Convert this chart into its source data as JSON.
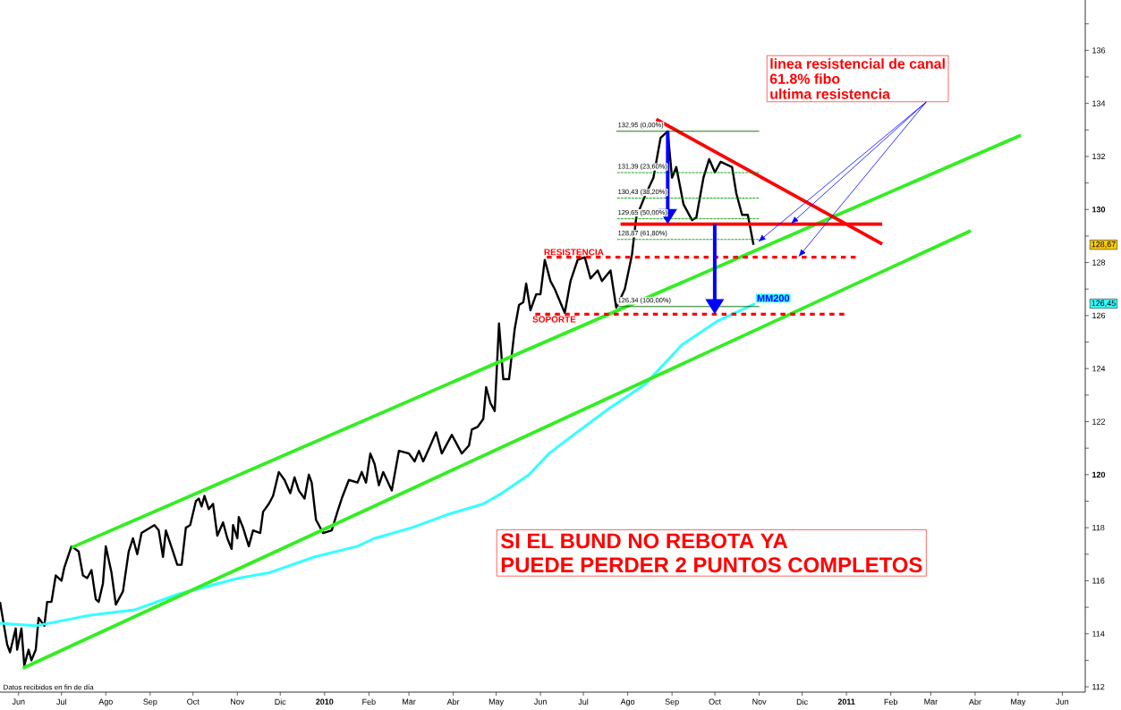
{
  "chart_data": {
    "type": "line",
    "xlim": [
      "2009-05-19",
      "2011-06-17"
    ],
    "ylim": [
      111.8,
      137.9
    ],
    "xticks": [
      {
        "value": "2009-06-01",
        "label": "Jun"
      },
      {
        "value": "2009-07-01",
        "label": "Jul"
      },
      {
        "value": "2009-08-01",
        "label": "Ago"
      },
      {
        "value": "2009-09-01",
        "label": "Sep"
      },
      {
        "value": "2009-10-01",
        "label": "Oct"
      },
      {
        "value": "2009-11-01",
        "label": "Nov"
      },
      {
        "value": "2009-12-01",
        "label": "Dic"
      },
      {
        "value": "2010-01-01",
        "label": "**2010**"
      },
      {
        "value": "2010-02-01",
        "label": "Feb"
      },
      {
        "value": "2010-03-01",
        "label": "Mar"
      },
      {
        "value": "2010-04-01",
        "label": "Abr"
      },
      {
        "value": "2010-05-01",
        "label": "May"
      },
      {
        "value": "2010-06-01",
        "label": "Jun"
      },
      {
        "value": "2010-07-01",
        "label": "Jul"
      },
      {
        "value": "2010-08-01",
        "label": "Ago"
      },
      {
        "value": "2010-09-01",
        "label": "Sep"
      },
      {
        "value": "2010-10-01",
        "label": "Oct"
      },
      {
        "value": "2010-11-01",
        "label": "Nov"
      },
      {
        "value": "2010-12-01",
        "label": "Dic"
      },
      {
        "value": "2011-01-01",
        "label": "**2011**"
      },
      {
        "value": "2011-02-01",
        "label": "Feb"
      },
      {
        "value": "2011-03-01",
        "label": "Mar"
      },
      {
        "value": "2011-04-01",
        "label": "Abr"
      },
      {
        "value": "2011-05-01",
        "label": "May"
      },
      {
        "value": "2011-06-01",
        "label": "Jun"
      }
    ],
    "yticks": [
      112,
      {
        "value": 113,
        "label": null
      },
      114,
      {
        "value": 115,
        "label": null
      },
      116,
      {
        "value": 117,
        "label": null
      },
      118,
      {
        "value": 119,
        "label": null
      },
      {
        "value": 120,
        "label": "**120**"
      },
      {
        "value": 121,
        "label": null
      },
      122,
      {
        "value": 123,
        "label": null
      },
      124,
      {
        "value": 125,
        "label": null
      },
      126,
      {
        "value": 127,
        "label": null
      },
      128,
      {
        "value": 129,
        "label": null
      },
      {
        "value": 130,
        "label": "**130**"
      },
      {
        "value": 131,
        "label": null
      },
      132,
      {
        "value": 133,
        "label": null
      },
      134,
      {
        "value": 135,
        "label": null
      },
      136,
      {
        "value": 137,
        "label": null
      }
    ],
    "marker": "none",
    "series": [
      {
        "color": "#000000",
        "x": [
          "2009-05-19",
          "2009-05-24",
          "2009-05-26",
          "2009-05-30",
          "2009-05-31",
          "2009-06-03",
          "2009-06-05",
          "2009-06-08",
          "2009-06-10",
          "2009-06-13",
          "2009-06-15",
          "2009-06-19",
          "2009-06-21",
          "2009-06-24",
          "2009-06-27",
          "2009-07-01",
          "2009-07-03",
          "2009-07-08",
          "2009-07-13",
          "2009-07-16",
          "2009-07-19",
          "2009-07-22",
          "2009-07-25",
          "2009-07-27",
          "2009-07-30",
          "2009-08-01",
          "2009-08-05",
          "2009-08-08",
          "2009-08-13",
          "2009-08-17",
          "2009-08-20",
          "2009-08-23",
          "2009-08-26",
          "2009-09-04",
          "2009-09-07",
          "2009-09-10",
          "2009-09-12",
          "2009-09-17",
          "2009-09-20",
          "2009-09-23",
          "2009-09-26",
          "2009-09-29",
          "2009-10-03",
          "2009-10-05",
          "2009-10-07",
          "2009-10-09",
          "2009-10-12",
          "2009-10-15",
          "2009-10-18",
          "2009-10-22",
          "2009-10-25",
          "2009-10-28",
          "2009-10-29",
          "2009-11-01",
          "2009-11-02",
          "2009-11-05",
          "2009-11-09",
          "2009-11-12",
          "2009-11-17",
          "2009-11-19",
          "2009-11-23",
          "2009-11-26",
          "2009-11-30",
          "2009-12-04",
          "2009-12-08",
          "2009-12-11",
          "2009-12-14",
          "2009-12-18",
          "2009-12-21",
          "2009-12-23",
          "2009-12-26",
          "2009-12-31",
          "2010-01-06",
          "2010-01-10",
          "2010-01-13",
          "2010-01-18",
          "2010-01-24",
          "2010-01-27",
          "2010-01-30",
          "2010-02-02",
          "2010-02-05",
          "2010-02-08",
          "2010-02-11",
          "2010-02-17",
          "2010-02-22",
          "2010-03-01",
          "2010-03-05",
          "2010-03-08",
          "2010-03-11",
          "2010-03-16",
          "2010-03-20",
          "2010-03-24",
          "2010-03-31",
          "2010-04-07",
          "2010-04-12",
          "2010-04-14",
          "2010-04-18",
          "2010-04-22",
          "2010-04-24",
          "2010-04-27",
          "2010-04-30",
          "2010-05-03",
          "2010-05-06",
          "2010-05-10",
          "2010-05-14",
          "2010-05-17",
          "2010-05-20",
          "2010-05-22",
          "2010-05-25",
          "2010-05-29",
          "2010-06-01",
          "2010-06-04",
          "2010-06-08",
          "2010-06-11",
          "2010-06-18",
          "2010-06-22",
          "2010-06-27",
          "2010-07-02",
          "2010-07-06",
          "2010-07-11",
          "2010-07-14",
          "2010-07-20",
          "2010-07-24",
          "2010-07-30",
          "2010-08-04",
          "2010-08-07",
          "2010-08-13",
          "2010-08-19",
          "2010-08-24",
          "2010-08-29",
          "2010-09-01",
          "2010-09-04",
          "2010-09-09",
          "2010-09-15",
          "2010-09-18",
          "2010-09-23",
          "2010-09-27",
          "2010-10-01",
          "2010-10-05",
          "2010-10-13",
          "2010-10-16",
          "2010-10-20",
          "2010-10-24",
          "2010-10-28"
        ],
        "values": [
          115.2,
          113.6,
          113.3,
          114.2,
          113.4,
          114.2,
          112.8,
          113.4,
          113.0,
          113.4,
          114.6,
          114.3,
          115.2,
          115.2,
          116.2,
          116.0,
          116.5,
          117.3,
          117.1,
          116.2,
          116.1,
          116.4,
          115.3,
          115.2,
          115.9,
          117.3,
          116.3,
          115.1,
          115.6,
          117.1,
          117.6,
          117.0,
          117.8,
          118.1,
          117.9,
          116.9,
          117.9,
          117.1,
          116.6,
          116.6,
          118.0,
          118.1,
          119.0,
          119.1,
          118.8,
          119.2,
          118.7,
          118.9,
          117.7,
          118.2,
          117.6,
          117.2,
          118.1,
          117.6,
          118.4,
          118.0,
          117.3,
          117.9,
          117.8,
          118.6,
          118.9,
          119.2,
          120.1,
          119.8,
          119.3,
          119.9,
          119.4,
          119.1,
          120.0,
          119.7,
          118.3,
          117.8,
          117.9,
          118.6,
          119.1,
          119.8,
          119.7,
          120.1,
          119.7,
          120.8,
          120.4,
          119.6,
          120.1,
          119.4,
          120.9,
          120.8,
          120.5,
          120.9,
          120.5,
          121.1,
          121.6,
          120.8,
          121.5,
          120.8,
          121.1,
          121.7,
          121.8,
          122.1,
          123.3,
          122.7,
          122.4,
          125.7,
          123.6,
          123.6,
          125.5,
          126.4,
          126.5,
          127.2,
          126.2,
          126.8,
          126.8,
          128.1,
          127.3,
          127.0,
          126.1,
          127.3,
          128.1,
          128.2,
          127.4,
          127.7,
          127.3,
          127.7,
          126.3,
          127.0,
          128.3,
          129.7,
          130.5,
          131.2,
          132.7,
          132.95,
          131.2,
          131.6,
          130.2,
          129.6,
          129.7,
          131.2,
          131.9,
          131.4,
          131.8,
          131.6,
          130.6,
          129.8,
          129.8,
          128.67
        ]
      },
      {
        "name": "MM200",
        "color": "#33ffff",
        "x": [
          "2009-05-19",
          "2009-06-13",
          "2009-07-21",
          "2009-08-21",
          "2009-09-21",
          "2009-11-02",
          "2009-11-23",
          "2009-12-25",
          "2010-01-24",
          "2010-02-05",
          "2010-03-03",
          "2010-03-28",
          "2010-04-22",
          "2010-05-05",
          "2010-05-24",
          "2010-06-07",
          "2010-06-24",
          "2010-07-19",
          "2010-08-13",
          "2010-09-08",
          "2010-10-03",
          "2010-10-29"
        ],
        "values": [
          114.4,
          114.3,
          114.7,
          114.9,
          115.5,
          116.1,
          116.3,
          116.9,
          117.3,
          117.6,
          118.0,
          118.5,
          118.9,
          119.3,
          120.0,
          120.8,
          121.5,
          122.5,
          123.4,
          124.9,
          125.8,
          126.45
        ]
      },
      {
        "color": "#33ee22",
        "x": [
          "2009-07-08",
          "2011-05-03"
        ],
        "values": [
          117.25,
          132.8
        ]
      },
      {
        "color": "#33ee22",
        "x": [
          "2009-06-04",
          "2011-03-29"
        ],
        "values": [
          112.7,
          129.2
        ]
      },
      {
        "color": "#ff0000",
        "x": [
          "2010-08-21",
          "2011-01-26"
        ],
        "values": [
          133.4,
          128.7
        ]
      },
      {
        "color": "#ff0000",
        "x": [
          "2010-07-27",
          "2011-01-26"
        ],
        "values": [
          129.45,
          129.45
        ]
      },
      {
        "name": "RESISTENCIA",
        "color": "#ff0000",
        "line_style": "dotted",
        "x": [
          "2010-06-02",
          "2011-01-08"
        ],
        "values": [
          128.2,
          128.2
        ]
      },
      {
        "name": "SOPORTE",
        "color": "#ff0000",
        "line_style": "dotted",
        "x": [
          "2010-05-25",
          "2010-12-31"
        ],
        "values": [
          126.05,
          126.05
        ]
      },
      {
        "name": "132,95 (0,00%)",
        "color": "#006600",
        "line_style": "solid",
        "x": [
          "2010-07-24",
          "2010-11-01"
        ],
        "values": [
          132.95,
          132.95
        ]
      },
      {
        "name": "131,39 (23,60%)",
        "color": "#009900",
        "line_style": "dashed",
        "x": [
          "2010-07-24",
          "2010-11-01"
        ],
        "values": [
          131.39,
          131.39
        ]
      },
      {
        "name": "130,43 (38,20%)",
        "color": "#009900",
        "line_style": "dashed",
        "x": [
          "2010-07-24",
          "2010-11-01"
        ],
        "values": [
          130.43,
          130.43
        ]
      },
      {
        "name": "129,65 (50,00%)",
        "color": "#009900",
        "line_style": "dashed",
        "x": [
          "2010-07-24",
          "2010-11-01"
        ],
        "values": [
          129.65,
          129.65
        ]
      },
      {
        "name": "128,87 (61,80%)",
        "color": "#009900",
        "line_style": "dashed",
        "x": [
          "2010-07-24",
          "2010-11-01"
        ],
        "values": [
          128.87,
          128.87
        ]
      },
      {
        "name": "126,34 (100,00%)",
        "color": "#006600",
        "line_style": "solid",
        "x": [
          "2010-07-24",
          "2010-11-01"
        ],
        "values": [
          126.34,
          126.34
        ]
      }
    ],
    "annotations": [
      "linea resistencial de canal",
      "61.8% fibo",
      "ultima resistencia",
      "SI EL BUND NO REBOTA YA",
      "PUEDE PERDER 2 PUNTOS COMPLETOS",
      "Datos recibidos en fin de día",
      "128,67",
      "126,45"
    ]
  }
}
